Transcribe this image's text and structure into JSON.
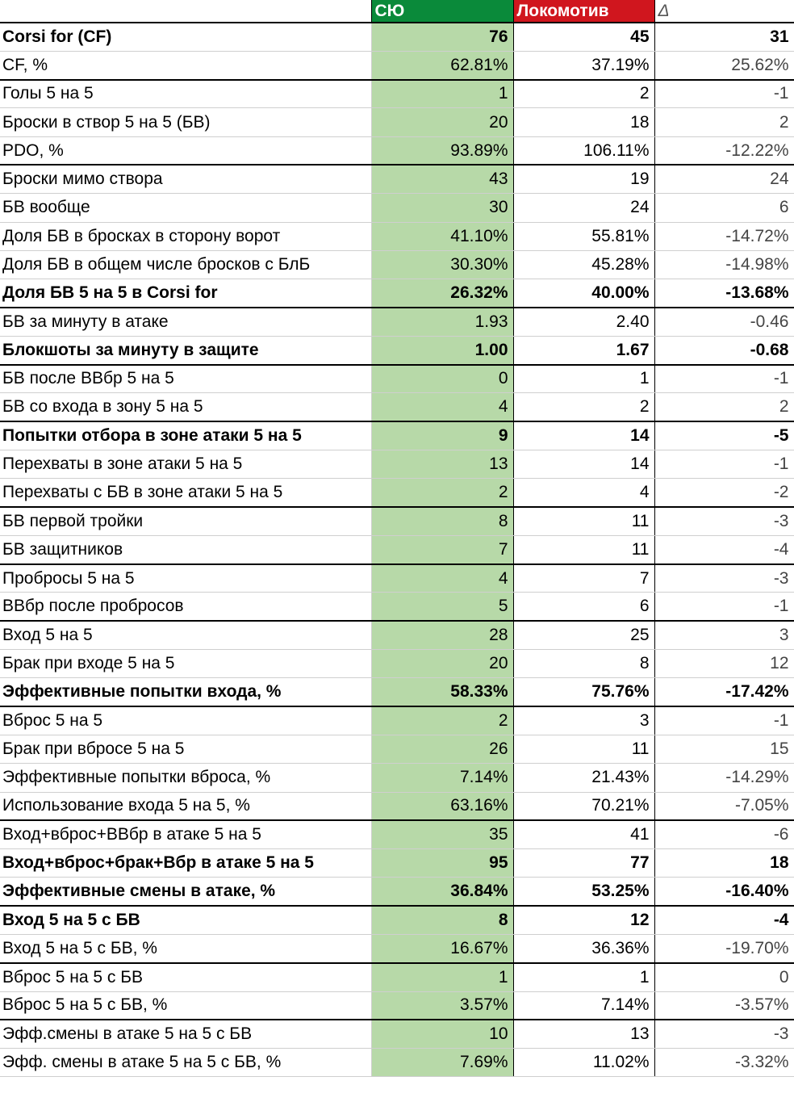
{
  "header": {
    "col1": "СЮ",
    "col2": "Локомотив",
    "col3": "Δ"
  },
  "rows": [
    {
      "label": "Corsi for (CF)",
      "sy": "76",
      "lok": "45",
      "delta": "31",
      "bold": true,
      "sep": false
    },
    {
      "label": "CF, %",
      "sy": "62.81%",
      "lok": "37.19%",
      "delta": "25.62%",
      "bold": false,
      "sep": false
    },
    {
      "label": "Голы 5 на 5",
      "sy": "1",
      "lok": "2",
      "delta": "-1",
      "bold": false,
      "sep": true
    },
    {
      "label": "Броски в створ 5 на 5 (БВ)",
      "sy": "20",
      "lok": "18",
      "delta": "2",
      "bold": false,
      "sep": false
    },
    {
      "label": "PDO, %",
      "sy": "93.89%",
      "lok": "106.11%",
      "delta": "-12.22%",
      "bold": false,
      "sep": false
    },
    {
      "label": "Броски мимо створа",
      "sy": "43",
      "lok": "19",
      "delta": "24",
      "bold": false,
      "sep": true
    },
    {
      "label": "БВ вообще",
      "sy": "30",
      "lok": "24",
      "delta": "6",
      "bold": false,
      "sep": false
    },
    {
      "label": "Доля БВ в бросках в сторону ворот",
      "sy": "41.10%",
      "lok": "55.81%",
      "delta": "-14.72%",
      "bold": false,
      "sep": false
    },
    {
      "label": "Доля БВ в общем числе бросков с БлБ",
      "sy": "30.30%",
      "lok": "45.28%",
      "delta": "-14.98%",
      "bold": false,
      "sep": false
    },
    {
      "label": "Доля БВ 5 на 5 в Corsi for",
      "sy": "26.32%",
      "lok": "40.00%",
      "delta": "-13.68%",
      "bold": true,
      "sep": false
    },
    {
      "label": "БВ за минуту в атаке",
      "sy": "1.93",
      "lok": "2.40",
      "delta": "-0.46",
      "bold": false,
      "sep": true
    },
    {
      "label": "Блокшоты за минуту в защите",
      "sy": "1.00",
      "lok": "1.67",
      "delta": "-0.68",
      "bold": true,
      "sep": false
    },
    {
      "label": "БВ после ВВбр 5 на 5",
      "sy": "0",
      "lok": "1",
      "delta": "-1",
      "bold": false,
      "sep": true
    },
    {
      "label": "БВ со входа в зону 5 на 5",
      "sy": "4",
      "lok": "2",
      "delta": "2",
      "bold": false,
      "sep": false
    },
    {
      "label": "Попытки отбора в зоне атаки 5 на 5",
      "sy": "9",
      "lok": "14",
      "delta": "-5",
      "bold": true,
      "sep": true
    },
    {
      "label": "Перехваты в зоне атаки 5 на 5",
      "sy": "13",
      "lok": "14",
      "delta": "-1",
      "bold": false,
      "sep": false
    },
    {
      "label": "Перехваты с БВ в зоне атаки 5 на 5",
      "sy": "2",
      "lok": "4",
      "delta": "-2",
      "bold": false,
      "sep": false
    },
    {
      "label": "БВ первой тройки",
      "sy": "8",
      "lok": "11",
      "delta": "-3",
      "bold": false,
      "sep": true
    },
    {
      "label": "БВ защитников",
      "sy": "7",
      "lok": "11",
      "delta": "-4",
      "bold": false,
      "sep": false
    },
    {
      "label": "Пробросы 5 на 5",
      "sy": "4",
      "lok": "7",
      "delta": "-3",
      "bold": false,
      "sep": true
    },
    {
      "label": "ВВбр после пробросов",
      "sy": "5",
      "lok": "6",
      "delta": "-1",
      "bold": false,
      "sep": false
    },
    {
      "label": "Вход 5 на 5",
      "sy": "28",
      "lok": "25",
      "delta": "3",
      "bold": false,
      "sep": true
    },
    {
      "label": "Брак при входе 5 на 5",
      "sy": "20",
      "lok": "8",
      "delta": "12",
      "bold": false,
      "sep": false
    },
    {
      "label": "Эффективные попытки входа, %",
      "sy": "58.33%",
      "lok": "75.76%",
      "delta": "-17.42%",
      "bold": true,
      "sep": false
    },
    {
      "label": "Вброс 5 на 5",
      "sy": "2",
      "lok": "3",
      "delta": "-1",
      "bold": false,
      "sep": true
    },
    {
      "label": "Брак при вбросе 5 на 5",
      "sy": "26",
      "lok": "11",
      "delta": "15",
      "bold": false,
      "sep": false
    },
    {
      "label": "Эффективные попытки вброса, %",
      "sy": "7.14%",
      "lok": "21.43%",
      "delta": "-14.29%",
      "bold": false,
      "sep": false
    },
    {
      "label": "Использование входа 5 на 5, %",
      "sy": "63.16%",
      "lok": "70.21%",
      "delta": "-7.05%",
      "bold": false,
      "sep": false
    },
    {
      "label": "Вход+вброс+ВВбр в атаке 5 на 5",
      "sy": "35",
      "lok": "41",
      "delta": "-6",
      "bold": false,
      "sep": true
    },
    {
      "label": "Вход+вброс+брак+Вбр в атаке 5 на 5",
      "sy": "95",
      "lok": "77",
      "delta": "18",
      "bold": true,
      "sep": false
    },
    {
      "label": "Эффективные смены в атаке, %",
      "sy": "36.84%",
      "lok": "53.25%",
      "delta": "-16.40%",
      "bold": true,
      "sep": false
    },
    {
      "label": "Вход 5 на 5 с БВ",
      "sy": "8",
      "lok": "12",
      "delta": "-4",
      "bold": true,
      "sep": true
    },
    {
      "label": "Вход 5 на 5 с БВ, %",
      "sy": "16.67%",
      "lok": "36.36%",
      "delta": "-19.70%",
      "bold": false,
      "sep": false
    },
    {
      "label": "Вброс 5 на 5 с БВ",
      "sy": "1",
      "lok": "1",
      "delta": "0",
      "bold": false,
      "sep": true
    },
    {
      "label": "Вброс 5 на 5 с БВ, %",
      "sy": "3.57%",
      "lok": "7.14%",
      "delta": "-3.57%",
      "bold": false,
      "sep": false
    },
    {
      "label": "Эфф.смены в атаке 5 на 5 с БВ",
      "sy": "10",
      "lok": "13",
      "delta": "-3",
      "bold": false,
      "sep": true
    },
    {
      "label": "Эфф. смены в атаке 5 на 5 с БВ, %",
      "sy": "7.69%",
      "lok": "11.02%",
      "delta": "-3.32%",
      "bold": false,
      "sep": false
    }
  ]
}
